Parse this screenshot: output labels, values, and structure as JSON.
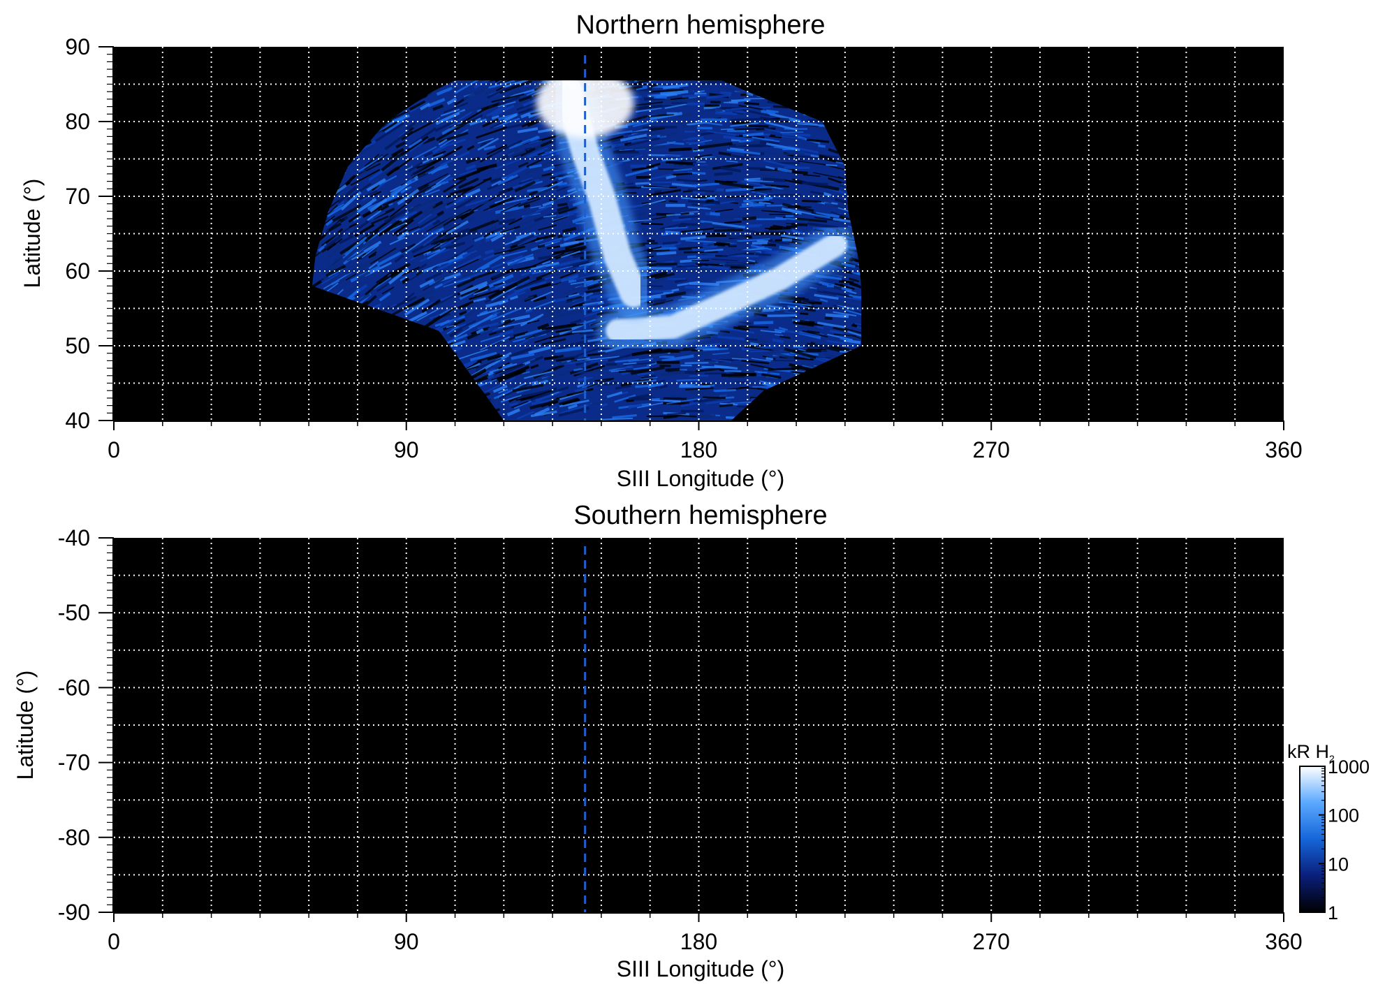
{
  "chart_data": [
    {
      "type": "heatmap",
      "title": "Northern hemisphere",
      "xlabel": "SIII Longitude (°)",
      "ylabel": "Latitude (°)",
      "xlim": [
        0,
        360
      ],
      "ylim": [
        40,
        90
      ],
      "xticks": [
        0,
        90,
        180,
        270,
        360
      ],
      "xtick_labels": [
        "0",
        "90",
        "180",
        "270",
        "360"
      ],
      "yticks": [
        40,
        50,
        60,
        70,
        80,
        90
      ],
      "ytick_labels": [
        "40",
        "50",
        "60",
        "70",
        "80",
        "90"
      ],
      "grid": true,
      "grid_x_step": 15,
      "grid_y_step": 5,
      "reference_longitude": 145,
      "background": "#000000",
      "emission": {
        "lon_range_at_lat": [
          {
            "lat": 58,
            "lon_min": 61,
            "lon_max": 230
          },
          {
            "lat": 62,
            "lon_min": 62,
            "lon_max": 229
          },
          {
            "lat": 68,
            "lon_min": 66,
            "lon_max": 226
          },
          {
            "lat": 74,
            "lon_min": 72,
            "lon_max": 225
          },
          {
            "lat": 80,
            "lon_min": 84,
            "lon_max": 218
          },
          {
            "lat": 84,
            "lon_min": 98,
            "lon_max": 195
          },
          {
            "lat": 85.5,
            "lon_min": 105,
            "lon_max": 187
          }
        ],
        "lower_edge": [
          {
            "lon": 100,
            "lat": 52
          },
          {
            "lon": 110,
            "lat": 46
          },
          {
            "lon": 120,
            "lat": 40
          },
          {
            "lon": 190,
            "lat": 40
          },
          {
            "lon": 200,
            "lat": 44
          },
          {
            "lon": 220,
            "lat": 48
          },
          {
            "lon": 230,
            "lat": 50
          }
        ],
        "bright_features": [
          {
            "name": "main oval arc",
            "points": [
              {
                "lon": 222,
                "lat": 63.5
              },
              {
                "lon": 205,
                "lat": 59
              },
              {
                "lon": 185,
                "lat": 55
              },
              {
                "lon": 172,
                "lat": 52.5
              },
              {
                "lon": 155,
                "lat": 52
              }
            ]
          },
          {
            "name": "polar cap",
            "points": [
              {
                "lon": 140,
                "lat": 84
              },
              {
                "lon": 145,
                "lat": 76
              },
              {
                "lon": 150,
                "lat": 70
              },
              {
                "lon": 155,
                "lat": 62
              },
              {
                "lon": 160,
                "lat": 57
              }
            ]
          }
        ]
      }
    },
    {
      "type": "heatmap",
      "title": "Southern hemisphere",
      "xlabel": "SIII Longitude (°)",
      "ylabel": "Latitude (°)",
      "xlim": [
        0,
        360
      ],
      "ylim": [
        -90,
        -40
      ],
      "xticks": [
        0,
        90,
        180,
        270,
        360
      ],
      "xtick_labels": [
        "0",
        "90",
        "180",
        "270",
        "360"
      ],
      "yticks": [
        -40,
        -50,
        -60,
        -70,
        -80,
        -90
      ],
      "ytick_labels": [
        "-40",
        "-50",
        "-60",
        "-70",
        "-80",
        "-90"
      ],
      "grid": true,
      "grid_x_step": 15,
      "grid_y_step": 5,
      "reference_longitude": 145,
      "background": "#000000"
    }
  ],
  "colorbar": {
    "label_main": "kR H",
    "label_sub": "2",
    "scale": "log",
    "range": [
      1,
      1000
    ],
    "ticks": [
      1,
      10,
      100,
      1000
    ],
    "tick_labels": [
      "1",
      "10",
      "100",
      "1000"
    ],
    "colors": [
      "#000000",
      "#0a1f7a",
      "#1565d8",
      "#5aa8ff",
      "#ffffff"
    ]
  },
  "colors": {
    "background": "#000000",
    "grid": "#ffffff",
    "reference_line": "#1f5fcc"
  }
}
